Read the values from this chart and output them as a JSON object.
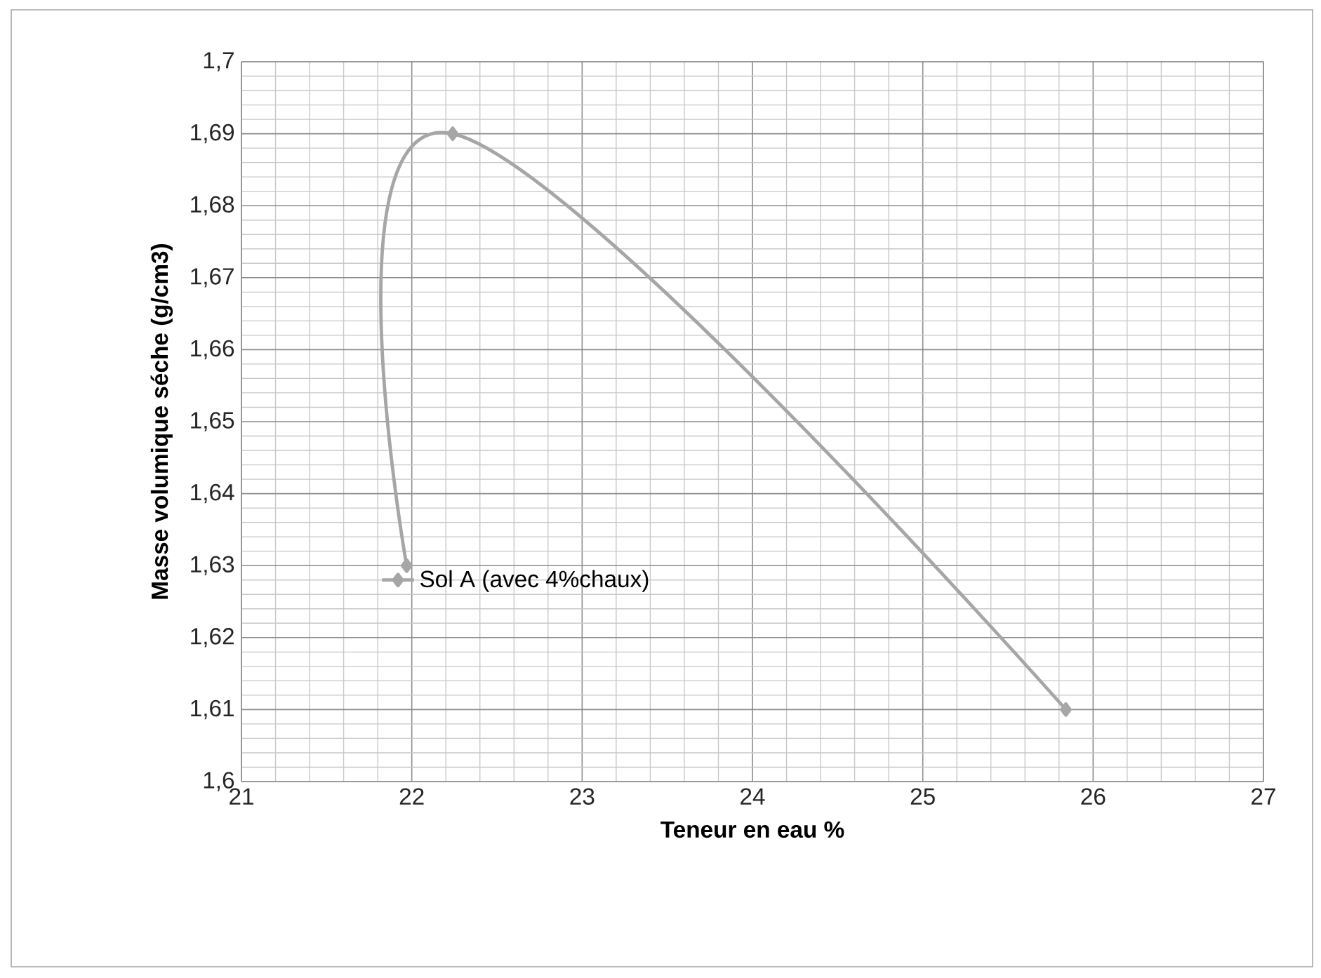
{
  "chart_data": {
    "type": "line",
    "xlabel": "Teneur en eau %",
    "ylabel": "Masse volumique séche (g/cm3)",
    "xlim": [
      21,
      27
    ],
    "xticks": [
      21,
      22,
      23,
      24,
      25,
      26,
      27
    ],
    "ylim": [
      1.6,
      1.7
    ],
    "yticks": [
      {
        "value": 1.6,
        "label": "1,6"
      },
      {
        "value": 1.61,
        "label": "1,61"
      },
      {
        "value": 1.62,
        "label": "1,62"
      },
      {
        "value": 1.63,
        "label": "1,63"
      },
      {
        "value": 1.64,
        "label": "1,64"
      },
      {
        "value": 1.65,
        "label": "1,65"
      },
      {
        "value": 1.66,
        "label": "1,66"
      },
      {
        "value": 1.67,
        "label": "1,67"
      },
      {
        "value": 1.68,
        "label": "1,68"
      },
      {
        "value": 1.69,
        "label": "1,69"
      },
      {
        "value": 1.7,
        "label": "1,7"
      }
    ],
    "grid": true,
    "legend": "left",
    "marker": "diamond",
    "line_style": "solid",
    "series": [
      {
        "name": "Sol A (avec 4%chaux)",
        "color": "#a6a6a6",
        "x": [
          21.97,
          22.24,
          25.84
        ],
        "values": [
          1.63,
          1.69,
          1.61
        ]
      }
    ]
  }
}
